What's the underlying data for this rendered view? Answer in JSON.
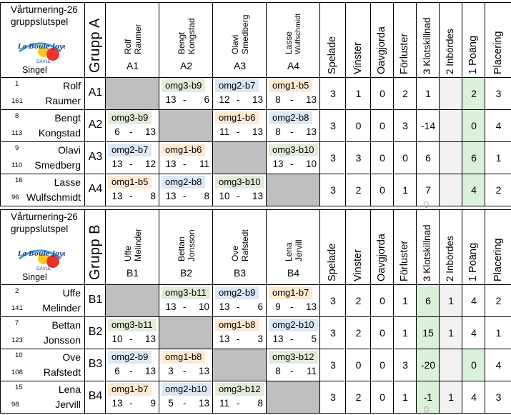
{
  "groups": [
    {
      "heading_line1": "Vårturnering-26",
      "heading_line2": "gruppslutspel",
      "singel": "Singel",
      "grupp_label": "Grupp  A",
      "columns": [
        {
          "first": "Rolf",
          "last": "Raumer",
          "code": "A1"
        },
        {
          "first": "Bengt",
          "last": "Kongstad",
          "code": "A2"
        },
        {
          "first": "Olavi",
          "last": "Smedberg",
          "code": "A3"
        },
        {
          "first": "Lasse",
          "last": "Wulfschmidt",
          "code": "A4"
        }
      ],
      "stat_headers": [
        "Spelade",
        "Vinster",
        "Oavgjorda",
        "Förluster",
        "3 Klotskillnad",
        "2 Inbördes",
        "1 Poäng",
        "Placering"
      ],
      "rows": [
        {
          "num1": "1",
          "num2": "161",
          "first": "Rolf",
          "last": "Raumer",
          "code": "A1",
          "matches": [
            null,
            {
              "label": "omg3-b9",
              "s1": "13",
              "dash": "-",
              "s2": "6"
            },
            {
              "label": "omg2-b7",
              "s1": "12",
              "dash": "-",
              "s2": "13"
            },
            {
              "label": "omg1-b5",
              "s1": "8",
              "dash": "-",
              "s2": "13"
            }
          ],
          "stats": {
            "spelade": "3",
            "vinster": "1",
            "oavgjorda": "0",
            "forluster": "2",
            "klotskillnad": "1",
            "inbordes": "",
            "poang": "2",
            "placering": "3"
          }
        },
        {
          "num1": "8",
          "num2": "113",
          "first": "Bengt",
          "last": "Kongstad",
          "code": "A2",
          "matches": [
            {
              "label": "omg3-b9",
              "s1": "6",
              "dash": "-",
              "s2": "13"
            },
            null,
            {
              "label": "omg1-b6",
              "s1": "11",
              "dash": "-",
              "s2": "13"
            },
            {
              "label": "omg2-b8",
              "s1": "8",
              "dash": "-",
              "s2": "13"
            }
          ],
          "stats": {
            "spelade": "3",
            "vinster": "0",
            "oavgjorda": "0",
            "forluster": "3",
            "klotskillnad": "-14",
            "inbordes": "",
            "poang": "0",
            "placering": "4"
          }
        },
        {
          "num1": "9",
          "num2": "110",
          "first": "Olavi",
          "last": "Smedberg",
          "code": "A3",
          "matches": [
            {
              "label": "omg2-b7",
              "s1": "13",
              "dash": "-",
              "s2": "12"
            },
            {
              "label": "omg1-b6",
              "s1": "13",
              "dash": "-",
              "s2": "11"
            },
            null,
            {
              "label": "omg3-b10",
              "s1": "13",
              "dash": "-",
              "s2": "10"
            }
          ],
          "stats": {
            "spelade": "3",
            "vinster": "3",
            "oavgjorda": "0",
            "forluster": "0",
            "klotskillnad": "6",
            "inbordes": "",
            "poang": "6",
            "placering": "1"
          }
        },
        {
          "num1": "16",
          "num2": "96",
          "first": "Lasse",
          "last": "Wulfschmidt",
          "code": "A4",
          "matches": [
            {
              "label": "omg1-b5",
              "s1": "13",
              "dash": "-",
              "s2": "8"
            },
            {
              "label": "omg2-b8",
              "s1": "13",
              "dash": "-",
              "s2": "8"
            },
            {
              "label": "omg3-b10",
              "s1": "10",
              "dash": "-",
              "s2": "13"
            },
            null
          ],
          "stats": {
            "spelade": "3",
            "vinster": "2",
            "oavgjorda": "0",
            "forluster": "1",
            "klotskillnad": "7",
            "inbordes": "",
            "poang": "4",
            "placering": "2"
          }
        }
      ]
    },
    {
      "heading_line1": "Vårturnering-26",
      "heading_line2": "gruppslutspel",
      "singel": "Singel",
      "grupp_label": "Grupp  B",
      "columns": [
        {
          "first": "Uffe",
          "last": "Melinder",
          "code": "B1"
        },
        {
          "first": "Bettan",
          "last": "Jonsson",
          "code": "B2"
        },
        {
          "first": "Ove",
          "last": "Rafstedt",
          "code": "B3"
        },
        {
          "first": "Lena",
          "last": "Jervill",
          "code": "B4"
        }
      ],
      "stat_headers": [
        "Spelade",
        "Vinster",
        "Oavgjorda",
        "Förluster",
        "3 Klotskillnad",
        "2 Inbördes",
        "1 Poäng",
        "Placering"
      ],
      "rows": [
        {
          "num1": "2",
          "num2": "141",
          "first": "Uffe",
          "last": "Melinder",
          "code": "B1",
          "matches": [
            null,
            {
              "label": "omg3-b11",
              "s1": "13",
              "dash": "-",
              "s2": "10"
            },
            {
              "label": "omg2-b9",
              "s1": "13",
              "dash": "-",
              "s2": "6"
            },
            {
              "label": "omg1-b7",
              "s1": "9",
              "dash": "-",
              "s2": "13"
            }
          ],
          "stats": {
            "spelade": "3",
            "vinster": "2",
            "oavgjorda": "0",
            "forluster": "1",
            "klotskillnad": "6",
            "inbordes": "1",
            "poang": "4",
            "placering": "2"
          }
        },
        {
          "num1": "7",
          "num2": "123",
          "first": "Bettan",
          "last": "Jonsson",
          "code": "B2",
          "matches": [
            {
              "label": "omg3-b11",
              "s1": "10",
              "dash": "-",
              "s2": "13"
            },
            null,
            {
              "label": "omg1-b8",
              "s1": "13",
              "dash": "-",
              "s2": "3"
            },
            {
              "label": "omg2-b10",
              "s1": "13",
              "dash": "-",
              "s2": "5"
            }
          ],
          "stats": {
            "spelade": "3",
            "vinster": "2",
            "oavgjorda": "0",
            "forluster": "1",
            "klotskillnad": "15",
            "inbordes": "1",
            "poang": "4",
            "placering": "1"
          }
        },
        {
          "num1": "10",
          "num2": "108",
          "first": "Ove",
          "last": "Rafstedt",
          "code": "B3",
          "matches": [
            {
              "label": "omg2-b9",
              "s1": "6",
              "dash": "-",
              "s2": "13"
            },
            {
              "label": "omg1-b8",
              "s1": "3",
              "dash": "-",
              "s2": "13"
            },
            null,
            {
              "label": "omg3-b12",
              "s1": "8",
              "dash": "-",
              "s2": "11"
            }
          ],
          "stats": {
            "spelade": "3",
            "vinster": "0",
            "oavgjorda": "0",
            "forluster": "3",
            "klotskillnad": "-20",
            "inbordes": "",
            "poang": "0",
            "placering": "4"
          }
        },
        {
          "num1": "15",
          "num2": "98",
          "first": "Lena",
          "last": "Jervill",
          "code": "B4",
          "matches": [
            {
              "label": "omg1-b7",
              "s1": "13",
              "dash": "-",
              "s2": "9"
            },
            {
              "label": "omg2-b10",
              "s1": "5",
              "dash": "-",
              "s2": "13"
            },
            {
              "label": "omg3-b12",
              "s1": "11",
              "dash": "-",
              "s2": "8"
            },
            null
          ],
          "stats": {
            "spelade": "3",
            "vinster": "2",
            "oavgjorda": "0",
            "forluster": "1",
            "klotskillnad": "-1",
            "inbordes": "1",
            "poang": "4",
            "placering": "3"
          }
        }
      ]
    }
  ],
  "stray_marks": {
    "zero_top": "0",
    "zero_bottom": "0"
  },
  "logo": {
    "brand": "La Boule Joyeuse",
    "city": "GÄVLE"
  },
  "colors": {
    "omg1": "#fde9d2",
    "omg2": "#dbe8f5",
    "omg3": "#e3ecd8",
    "highlight": "#d9f2d9",
    "empty": "#bfbfbf"
  }
}
